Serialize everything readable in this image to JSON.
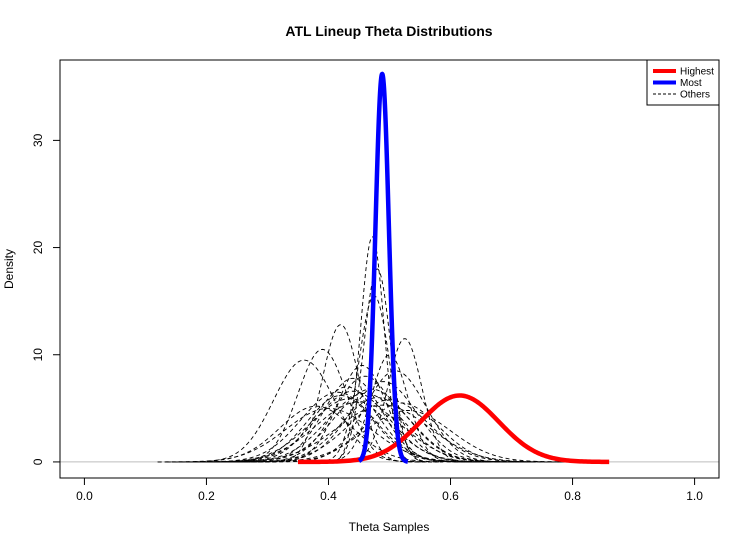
{
  "chart_data": {
    "type": "line",
    "title": "ATL Lineup Theta Distributions",
    "xlabel": "Theta Samples",
    "ylabel": "Density",
    "xlim": [
      -0.04,
      1.04
    ],
    "ylim": [
      -1.5,
      37.5
    ],
    "xticks": [
      0.0,
      0.2,
      0.4,
      0.6,
      0.8,
      1.0
    ],
    "xtick_labels": [
      "0.0",
      "0.2",
      "0.4",
      "0.6",
      "0.8",
      "1.0"
    ],
    "yticks": [
      0,
      10,
      20,
      30
    ],
    "ytick_labels": [
      "0",
      "10",
      "20",
      "30"
    ],
    "grid": false,
    "baseline": 0,
    "legend": {
      "position": "top-right",
      "entries": [
        {
          "label": "Highest",
          "color": "#ff0000",
          "style": "solid-thick"
        },
        {
          "label": "Most",
          "color": "#0000ff",
          "style": "solid-thick"
        },
        {
          "label": "Others",
          "color": "#000000",
          "style": "dashed"
        }
      ]
    },
    "highlighted_series": [
      {
        "name": "Highest",
        "color": "#ff0000",
        "mean": 0.615,
        "sd": 0.064,
        "peak": 6.2,
        "range": [
          0.35,
          0.86
        ]
      },
      {
        "name": "Most",
        "color": "#0000ff",
        "mean": 0.488,
        "sd": 0.011,
        "peak": 36.2,
        "range": [
          0.45,
          0.53
        ]
      }
    ],
    "other_series": [
      {
        "mean": 0.44,
        "sd": 0.06,
        "peak": 6.6
      },
      {
        "mean": 0.46,
        "sd": 0.062,
        "peak": 6.4
      },
      {
        "mean": 0.48,
        "sd": 0.058,
        "peak": 6.0
      },
      {
        "mean": 0.42,
        "sd": 0.055,
        "peak": 6.2
      },
      {
        "mean": 0.5,
        "sd": 0.065,
        "peak": 5.8
      },
      {
        "mean": 0.45,
        "sd": 0.07,
        "peak": 5.6
      },
      {
        "mean": 0.43,
        "sd": 0.052,
        "peak": 7.0
      },
      {
        "mean": 0.47,
        "sd": 0.06,
        "peak": 6.8
      },
      {
        "mean": 0.52,
        "sd": 0.06,
        "peak": 5.5
      },
      {
        "mean": 0.38,
        "sd": 0.06,
        "peak": 5.2
      },
      {
        "mean": 0.4,
        "sd": 0.07,
        "peak": 5.0
      },
      {
        "mean": 0.49,
        "sd": 0.055,
        "peak": 7.5
      },
      {
        "mean": 0.46,
        "sd": 0.05,
        "peak": 8.0
      },
      {
        "mean": 0.51,
        "sd": 0.05,
        "peak": 8.5
      },
      {
        "mean": 0.44,
        "sd": 0.048,
        "peak": 7.8
      },
      {
        "mean": 0.36,
        "sd": 0.05,
        "peak": 9.5
      },
      {
        "mean": 0.42,
        "sd": 0.03,
        "peak": 12.8
      },
      {
        "mean": 0.39,
        "sd": 0.04,
        "peak": 10.5
      },
      {
        "mean": 0.475,
        "sd": 0.025,
        "peak": 15.5
      },
      {
        "mean": 0.48,
        "sd": 0.022,
        "peak": 18.0
      },
      {
        "mean": 0.472,
        "sd": 0.019,
        "peak": 21.0
      },
      {
        "mean": 0.525,
        "sd": 0.028,
        "peak": 11.5
      },
      {
        "mean": 0.5,
        "sd": 0.03,
        "peak": 10.0
      },
      {
        "mean": 0.455,
        "sd": 0.04,
        "peak": 9.0
      },
      {
        "mean": 0.415,
        "sd": 0.06,
        "peak": 6.5
      },
      {
        "mean": 0.53,
        "sd": 0.07,
        "peak": 4.8
      },
      {
        "mean": 0.49,
        "sd": 0.075,
        "peak": 5.3
      },
      {
        "mean": 0.435,
        "sd": 0.065,
        "peak": 5.9
      }
    ]
  }
}
